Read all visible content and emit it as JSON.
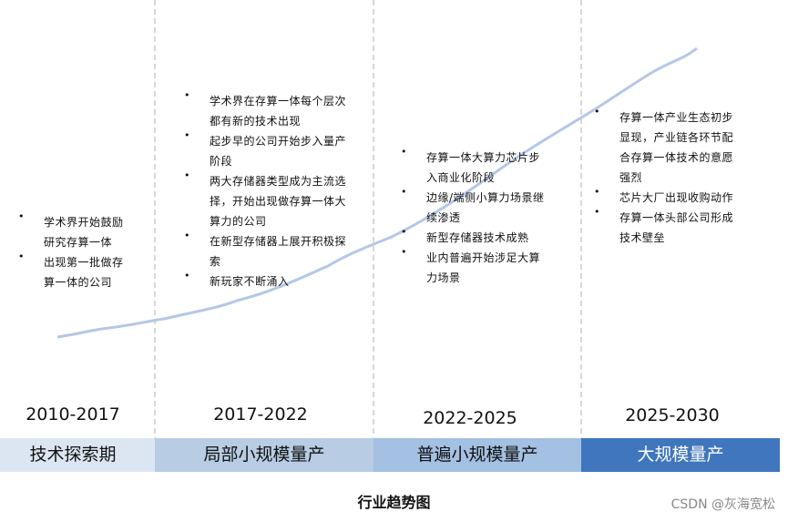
{
  "columns": [
    {
      "period": "2010-2017",
      "stage": "技术探索期",
      "bullets": [
        "学术界开始鼓励研究存算一体",
        "出现第一批做存算一体的公司"
      ]
    },
    {
      "period": "2017-2022",
      "stage": "局部小规模量产",
      "bullets": [
        "学术界在存算一体每个层次都有新的技术出现",
        "起步早的公司开始步入量产阶段",
        "两大存储器类型成为主流选择，开始出现做存算一体大算力的公司",
        "在新型存储器上展开积极探索",
        "新玩家不断涌入"
      ]
    },
    {
      "period": "2022-2025",
      "stage": "普遍小规模量产",
      "bullets": [
        "存算一体大算力芯片步入商业化阶段",
        "边缘/端侧小算力场景继续渗透",
        "新型存储器技术成熟",
        "业内普遍开始涉足大算力场景"
      ]
    },
    {
      "period": "2025-2030",
      "stage": "大规模量产",
      "bullets": [
        "存算一体产业生态初步显现，产业链各环节配合存算一体技术的意愿强烈",
        "芯片大厂出现收购动作",
        "存算一体头部公司形成技术壁垒"
      ]
    }
  ],
  "caption": "行业趋势图",
  "watermark": "CSDN @灰海宽松"
}
